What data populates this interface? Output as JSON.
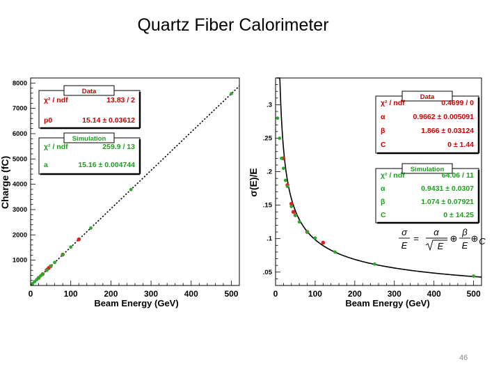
{
  "slide": {
    "title": "Quartz Fiber Calorimeter",
    "page_number": "46"
  },
  "colors": {
    "data_marker": "#e02020",
    "sim_marker": "#2aa82a",
    "stat_text": "#cc0000",
    "sim_text": "#1e9e1e",
    "axis": "#000000"
  },
  "chart_data": [
    {
      "type": "scatter",
      "xlabel": "Beam Energy (GeV)",
      "ylabel": "Charge (fC)",
      "xlim": [
        0,
        520
      ],
      "ylim": [
        0,
        8200
      ],
      "x_ticks": [
        0,
        100,
        200,
        300,
        400,
        500
      ],
      "y_ticks": [
        1000,
        2000,
        3000,
        4000,
        5000,
        6000,
        7000,
        8000
      ],
      "grid": false,
      "series": [
        {
          "role": "data",
          "x": [
            20,
            30,
            40,
            45,
            50,
            80,
            120
          ],
          "y": [
            300,
            450,
            610,
            690,
            760,
            1220,
            1820
          ]
        },
        {
          "role": "simulation",
          "x": [
            5,
            10,
            15,
            20,
            25,
            30,
            40,
            50,
            60,
            80,
            100,
            150,
            250,
            500
          ],
          "y": [
            76,
            150,
            230,
            300,
            380,
            455,
            605,
            760,
            910,
            1210,
            1520,
            2270,
            3790,
            7580
          ]
        }
      ],
      "fits": [
        {
          "role": "data",
          "p0": 15.14
        },
        {
          "role": "simulation",
          "a": 15.16
        }
      ],
      "stat_boxes": [
        {
          "title": "Data",
          "rows": [
            {
              "label": "χ² / ndf",
              "value": "13.83 / 2"
            },
            {
              "label": "p0",
              "value": "15.14 ± 0.03612"
            }
          ]
        },
        {
          "title": "Simulation",
          "rows": [
            {
              "label": "χ² / ndf",
              "value": "259.9 / 13"
            },
            {
              "label": "a",
              "value": "15.16 ± 0.004744"
            }
          ]
        }
      ]
    },
    {
      "type": "scatter",
      "xlabel": "Beam Energy (GeV)",
      "ylabel": "σ(E)/E",
      "xlim": [
        0,
        520
      ],
      "ylim": [
        0.03,
        0.34
      ],
      "x_ticks": [
        0,
        100,
        200,
        300,
        400,
        500
      ],
      "y_ticks": [
        0.05,
        0.1,
        0.15,
        0.2,
        0.25,
        0.3
      ],
      "grid": false,
      "series": [
        {
          "role": "data",
          "x": [
            20,
            30,
            40,
            45,
            50,
            80,
            120
          ],
          "y": [
            0.22,
            0.18,
            0.152,
            0.14,
            0.135,
            0.11,
            0.094
          ]
        },
        {
          "role": "simulation",
          "x": [
            5,
            10,
            15,
            20,
            25,
            30,
            40,
            50,
            60,
            80,
            100,
            150,
            250,
            500
          ],
          "y": [
            0.28,
            0.25,
            0.22,
            0.205,
            0.187,
            0.178,
            0.148,
            0.135,
            0.125,
            0.11,
            0.101,
            0.08,
            0.062,
            0.044
          ]
        }
      ],
      "fits": [
        {
          "role": "data",
          "alpha": 0.9662,
          "beta": 1.866,
          "C": 0
        },
        {
          "role": "simulation",
          "alpha": 0.9431,
          "beta": 1.074,
          "C": 0
        }
      ],
      "stat_boxes": [
        {
          "title": "Data",
          "rows": [
            {
              "label": "χ² / ndf",
              "value": "0.4699 / 0"
            },
            {
              "label": "α",
              "value": "0.9662 ± 0.005091"
            },
            {
              "label": "β",
              "value": "1.866 ± 0.03124"
            },
            {
              "label": "C",
              "value": "0 ± 1.44"
            }
          ]
        },
        {
          "title": "Simulation",
          "rows": [
            {
              "label": "χ² / ndf",
              "value": "64.06 / 11"
            },
            {
              "label": "α",
              "value": "0.9431 ± 0.0307"
            },
            {
              "label": "β",
              "value": "1.074 ± 0.07921"
            },
            {
              "label": "C",
              "value": "0 ± 14.25"
            }
          ]
        }
      ],
      "formula": {
        "lhs_num": "σ",
        "lhs_den": "E",
        "eq": "=",
        "a_num": "α",
        "a_den": "E",
        "plus1": "⊕",
        "b_num": "β",
        "b_den": "E",
        "plus2": "⊕",
        "c": "C"
      }
    }
  ]
}
